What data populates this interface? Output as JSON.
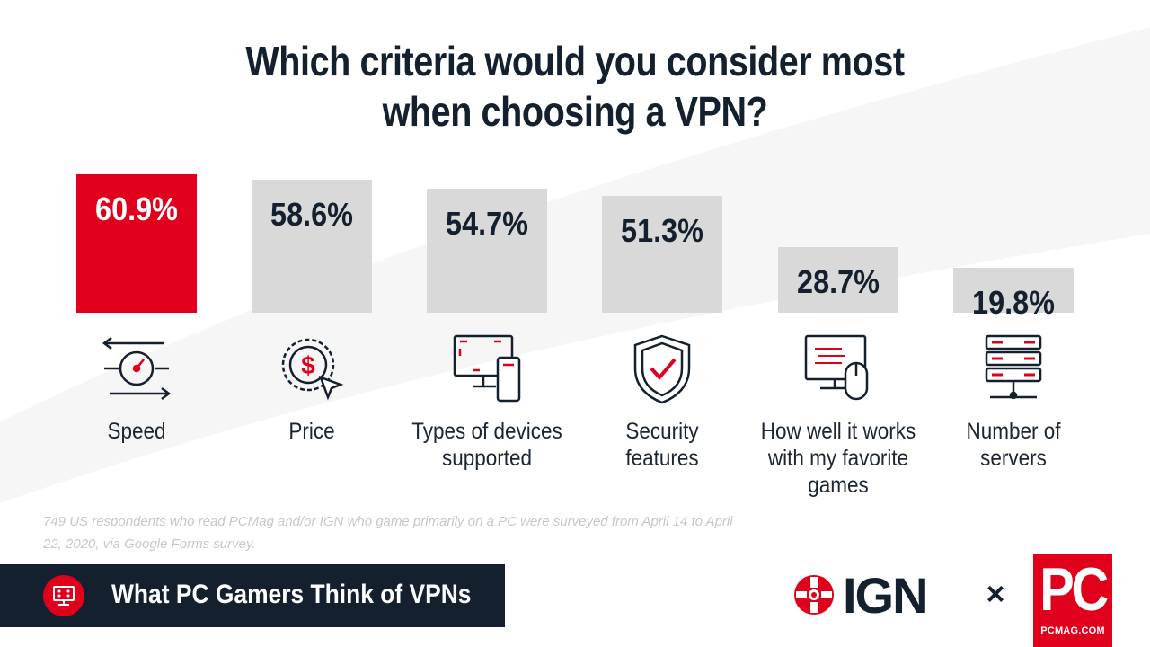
{
  "chart_data": {
    "type": "bar",
    "title": "Which criteria would you consider most when choosing a VPN?",
    "title_lines": [
      "Which criteria would you consider most",
      "when choosing a VPN?"
    ],
    "categories": [
      "Speed",
      "Price",
      "Types of devices supported",
      "Security features",
      "How well it works with my favorite games",
      "Number of servers"
    ],
    "category_lines": [
      [
        "Speed"
      ],
      [
        "Price"
      ],
      [
        "Types of devices",
        "supported"
      ],
      [
        "Security",
        "features"
      ],
      [
        "How well it works",
        "with my favorite",
        "games"
      ],
      [
        "Number of",
        "servers"
      ]
    ],
    "values": [
      60.9,
      58.6,
      54.7,
      51.3,
      28.7,
      19.8
    ],
    "value_labels": [
      "60.9%",
      "58.6%",
      "54.7%",
      "51.3%",
      "28.7%",
      "19.8%"
    ],
    "unit": "%",
    "highlight_index": 0,
    "colors": {
      "highlight": "#e0001b",
      "default": "#d9d9d9",
      "text": "#15202e"
    },
    "icons": [
      "speedometer-arrows-icon",
      "dollar-coin-cursor-icon",
      "monitor-phone-icon",
      "shield-check-icon",
      "monitor-mouse-icon",
      "server-rack-icon"
    ],
    "grid": false,
    "legend": "none"
  },
  "footnote": "749 US respondents who read PCMag and/or IGN who game primarily on a PC were surveyed from April 14 to April 22, 2020, via Google Forms survey.",
  "banner": {
    "text": "What PC Gamers Think of VPNs",
    "icon": "gamer-monitor-icon"
  },
  "logos": {
    "ign": "IGN",
    "separator": "×",
    "pc": "PC",
    "pc_domain": "PCMAG.COM"
  }
}
